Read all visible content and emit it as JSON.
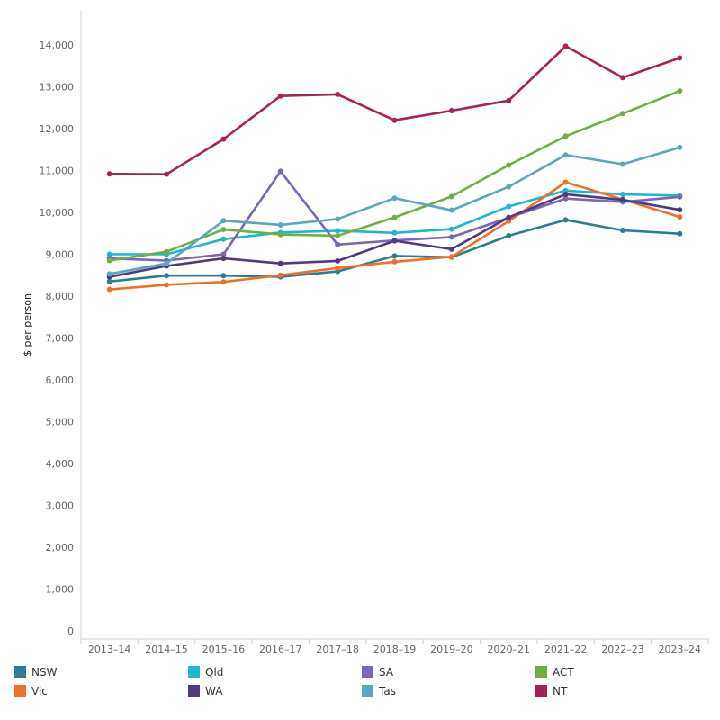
{
  "chart_data": {
    "type": "line",
    "title": "",
    "xlabel": "",
    "ylabel": "$ per person",
    "ylim": [
      0,
      14600
    ],
    "yticks": [
      0,
      1000,
      2000,
      3000,
      4000,
      5000,
      6000,
      7000,
      8000,
      9000,
      10000,
      11000,
      12000,
      13000,
      14000
    ],
    "ytick_labels": [
      "0",
      "1,000",
      "2,000",
      "3,000",
      "4,000",
      "5,000",
      "6,000",
      "7,000",
      "8,000",
      "9,000",
      "10,000",
      "11,000",
      "12,000",
      "13,000",
      "14,000"
    ],
    "categories": [
      "2013–14",
      "2014–15",
      "2015–16",
      "2016–17",
      "2017–18",
      "2018–19",
      "2019–20",
      "2020–21",
      "2021–22",
      "2022–23",
      "2023–24"
    ],
    "grid": false,
    "legend_position": "bottom",
    "series": [
      {
        "name": "NSW",
        "color": "#2e7c91",
        "values": [
          8350,
          8490,
          8490,
          8460,
          8590,
          8960,
          8930,
          9440,
          9820,
          9570,
          9490
        ]
      },
      {
        "name": "Qld",
        "color": "#1cb9c6",
        "values": [
          9000,
          9000,
          9360,
          9520,
          9560,
          9510,
          9600,
          10140,
          10520,
          10430,
          10400
        ]
      },
      {
        "name": "SA",
        "color": "#7b66b6",
        "values": [
          8900,
          8850,
          9000,
          10980,
          9230,
          9330,
          9410,
          9870,
          10330,
          10250,
          10370
        ]
      },
      {
        "name": "ACT",
        "color": "#70ad47",
        "values": [
          8850,
          9060,
          9590,
          9470,
          9440,
          9880,
          10380,
          11130,
          11820,
          12360,
          12900
        ]
      },
      {
        "name": "Vic",
        "color": "#f07029",
        "values": [
          8160,
          8270,
          8340,
          8500,
          8670,
          8820,
          8940,
          9790,
          10720,
          10310,
          9890
        ]
      },
      {
        "name": "WA",
        "color": "#51397f",
        "values": [
          8460,
          8720,
          8900,
          8780,
          8840,
          9320,
          9120,
          9880,
          10430,
          10300,
          10060
        ]
      },
      {
        "name": "Tas",
        "color": "#5ea5bd",
        "values": [
          8530,
          8780,
          9800,
          9700,
          9840,
          10340,
          10050,
          10610,
          11370,
          11150,
          11550
        ]
      },
      {
        "name": "NT",
        "color": "#a8215a",
        "values": [
          10920,
          10910,
          11750,
          12780,
          12820,
          12200,
          12430,
          12670,
          13970,
          13220,
          13690
        ]
      }
    ]
  }
}
